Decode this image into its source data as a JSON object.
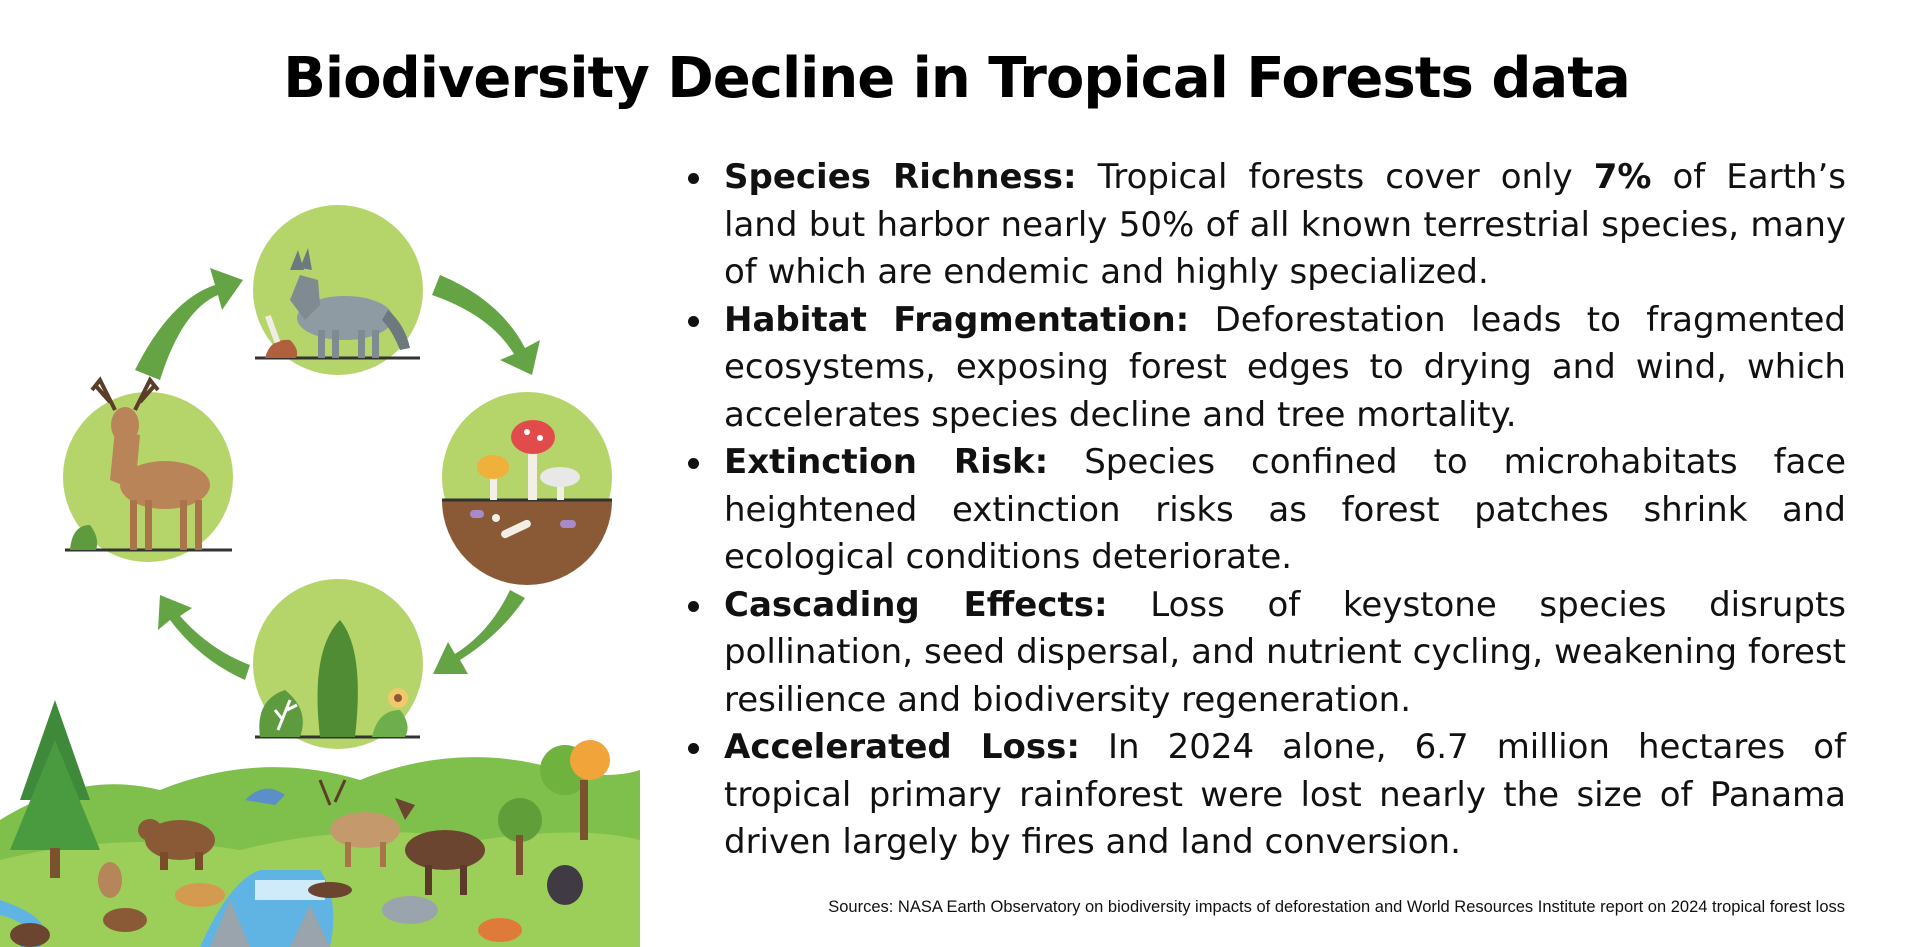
{
  "title": "Biodiversity Decline in Tropical Forests data",
  "bullets": [
    {
      "heading": "Species Richness:",
      "pre": " Tropical forests cover only ",
      "strong": "7%",
      "post": " of Earth’s land but harbor nearly 50% of all known terrestrial species, many of which are endemic and highly specialized."
    },
    {
      "heading": "Habitat Fragmentation:",
      "pre": " Deforestation leads to fragmented ecosystems, exposing forest edges to drying and wind, which accelerates species decline and tree mortality.",
      "strong": "",
      "post": ""
    },
    {
      "heading": "Extinction Risk:",
      "pre": " Species confined to microhabitats face heightened extinction risks as forest patches shrink and ecological conditions deteriorate.",
      "strong": "",
      "post": ""
    },
    {
      "heading": "Cascading Effects:",
      "pre": " Loss of keystone species disrupts pollination, seed dispersal, and nutrient cycling, weakening forest resilience and biodiversity regeneration.",
      "strong": "",
      "post": ""
    },
    {
      "heading": "Accelerated Loss:",
      "pre": " In 2024 alone, 6.7 million hectares of tropical primary rainforest were lost nearly the size of Panama driven largely by fires and land conversion.",
      "strong": "",
      "post": ""
    }
  ],
  "sources": "Sources: NASA Earth Observatory on biodiversity impacts of deforestation and World Resources Institute report on 2024 tropical forest loss",
  "illustration": {
    "icons": [
      "wolf-icon",
      "mushroom-soil-icon",
      "plants-icon",
      "deer-icon",
      "cycle-arrow-icon",
      "forest-wildlife-scene"
    ],
    "colors": {
      "circle": "#b5d46a",
      "arrow": "#64a444",
      "soil": "#8a5a36",
      "water": "#5fb4e4"
    }
  }
}
